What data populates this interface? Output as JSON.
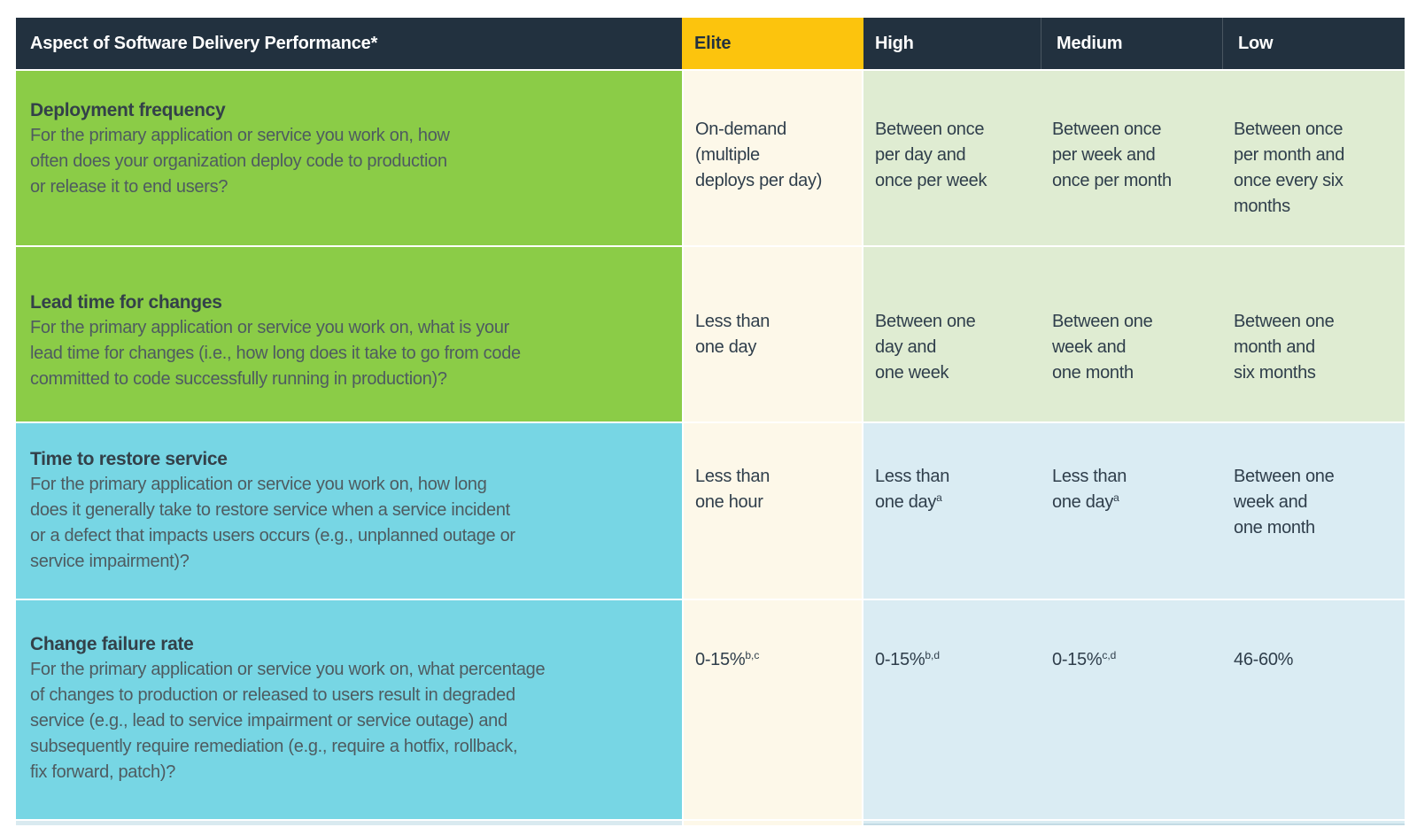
{
  "colors": {
    "header_bg": "#22313f",
    "elite_accent_yellow": "#fcc40d",
    "metric_green": "#8bcc47",
    "metric_teal": "#77d6e4",
    "cell_light_green": "#dfecd2",
    "cell_light_blue": "#daecf3",
    "elite_cream": "#fdf8e9"
  },
  "table": {
    "header": {
      "aspect_label": "Aspect of Software Delivery Performance*",
      "columns": [
        "Elite",
        "High",
        "Medium",
        "Low"
      ]
    },
    "rows": [
      {
        "title": "Deployment frequency",
        "question": "For the primary application or service you work on, how\noften does your organization deploy code to production\nor release it to end users?",
        "cells": [
          {
            "text": "On-demand\n(multiple\ndeploys per day)",
            "sup": ""
          },
          {
            "text": "Between once\nper day and\nonce per week",
            "sup": ""
          },
          {
            "text": "Between once\nper week and\nonce per month",
            "sup": ""
          },
          {
            "text": "Between once\nper month and\nonce every six\nmonths",
            "sup": ""
          }
        ]
      },
      {
        "title": "Lead time for changes",
        "question": "For the primary application or service you work on, what is your\nlead time for changes (i.e., how long does it take to go from code\ncommitted to code successfully running in production)?",
        "cells": [
          {
            "text": "Less than\none day",
            "sup": ""
          },
          {
            "text": "Between one\nday and\none week",
            "sup": ""
          },
          {
            "text": "Between one\nweek and\none month",
            "sup": ""
          },
          {
            "text": "Between one\nmonth and\nsix months",
            "sup": ""
          }
        ]
      },
      {
        "title": "Time to restore service",
        "question": "For the primary application or service you work on, how long\ndoes it generally take to restore service when a service incident\nor a defect that impacts users occurs (e.g., unplanned outage or\nservice impairment)?",
        "cells": [
          {
            "text": "Less than\none hour",
            "sup": ""
          },
          {
            "text": "Less than\none day",
            "sup": "a"
          },
          {
            "text": "Less than\none day",
            "sup": "a"
          },
          {
            "text": "Between one\nweek and\none month",
            "sup": ""
          }
        ]
      },
      {
        "title": "Change failure rate",
        "question": "For the primary application or service you work on, what percentage\nof changes to production or released to users result in degraded\nservice (e.g., lead to service impairment or service outage) and\nsubsequently require remediation (e.g., require a hotfix, rollback,\nfix forward, patch)?",
        "cells": [
          {
            "text": "0-15%",
            "sup": "b,c"
          },
          {
            "text": "0-15%",
            "sup": "b,d"
          },
          {
            "text": "0-15%",
            "sup": "c,d"
          },
          {
            "text": "46-60%",
            "sup": ""
          }
        ]
      }
    ]
  }
}
